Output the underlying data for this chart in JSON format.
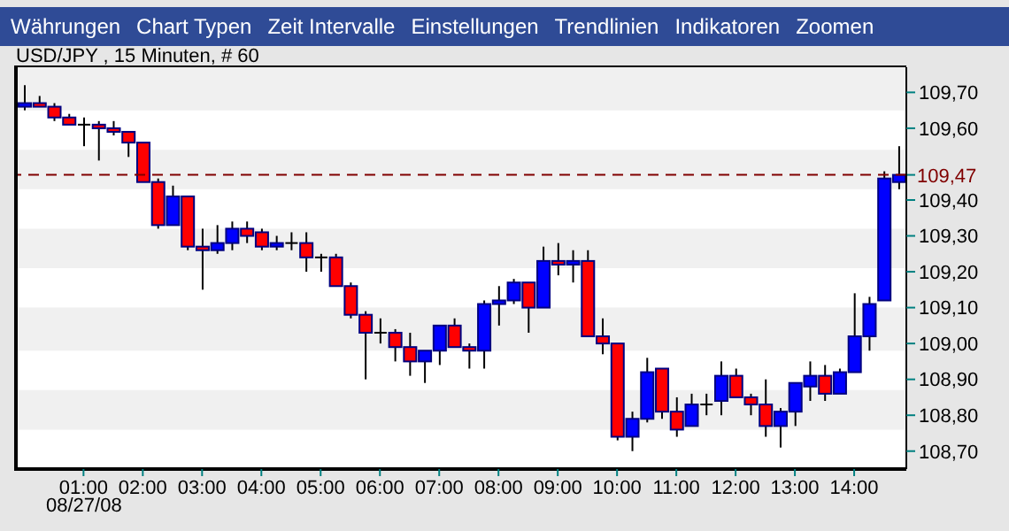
{
  "chart_data": {
    "type": "candlestick",
    "title": "USD/JPY , 15 Minuten, # 60",
    "annotations": [
      "Währungen",
      "Chart Typen",
      "Zeit Intervalle",
      "Einstellungen",
      "Trendlinien",
      "Indikatoren",
      "Zoomen",
      "08/27/08"
    ],
    "x": [
      0,
      0.25,
      0.5,
      0.75,
      1,
      1.25,
      1.5,
      1.75,
      2,
      2.25,
      2.5,
      2.75,
      3,
      3.25,
      3.5,
      3.75,
      4,
      4.25,
      4.5,
      4.75,
      5,
      5.25,
      5.5,
      5.75,
      6,
      6.25,
      6.5,
      6.75,
      7,
      7.25,
      7.5,
      7.75,
      8,
      8.25,
      8.5,
      8.75,
      9,
      9.25,
      9.5,
      9.75,
      10,
      10.25,
      10.5,
      10.75,
      11,
      11.25,
      11.5,
      11.75,
      12,
      12.25,
      12.5,
      12.75,
      13,
      13.25,
      13.5,
      13.75,
      14,
      14.25,
      14.5,
      14.75
    ],
    "ohlc": [
      [
        109.66,
        109.72,
        109.65,
        109.67
      ],
      [
        109.67,
        109.69,
        109.66,
        109.66
      ],
      [
        109.66,
        109.67,
        109.62,
        109.63
      ],
      [
        109.63,
        109.64,
        109.61,
        109.61
      ],
      [
        109.61,
        109.63,
        109.55,
        109.61
      ],
      [
        109.61,
        109.62,
        109.51,
        109.6
      ],
      [
        109.6,
        109.62,
        109.58,
        109.59
      ],
      [
        109.59,
        109.59,
        109.52,
        109.56
      ],
      [
        109.56,
        109.56,
        109.45,
        109.45
      ],
      [
        109.45,
        109.46,
        109.32,
        109.33
      ],
      [
        109.33,
        109.44,
        109.33,
        109.41
      ],
      [
        109.41,
        109.41,
        109.26,
        109.27
      ],
      [
        109.27,
        109.32,
        109.15,
        109.26
      ],
      [
        109.26,
        109.33,
        109.25,
        109.28
      ],
      [
        109.28,
        109.34,
        109.26,
        109.32
      ],
      [
        109.32,
        109.34,
        109.28,
        109.3
      ],
      [
        109.31,
        109.32,
        109.26,
        109.27
      ],
      [
        109.27,
        109.3,
        109.26,
        109.28
      ],
      [
        109.28,
        109.31,
        109.26,
        109.28
      ],
      [
        109.28,
        109.31,
        109.2,
        109.24
      ],
      [
        109.24,
        109.25,
        109.2,
        109.24
      ],
      [
        109.24,
        109.25,
        109.16,
        109.16
      ],
      [
        109.16,
        109.17,
        109.07,
        109.08
      ],
      [
        109.08,
        109.09,
        108.9,
        109.03
      ],
      [
        109.03,
        109.07,
        109.0,
        109.03
      ],
      [
        109.03,
        109.04,
        108.95,
        108.99
      ],
      [
        108.99,
        109.03,
        108.91,
        108.95
      ],
      [
        108.95,
        108.98,
        108.89,
        108.98
      ],
      [
        108.98,
        109.05,
        108.94,
        109.05
      ],
      [
        109.05,
        109.07,
        108.99,
        108.99
      ],
      [
        108.99,
        109.0,
        108.93,
        108.98
      ],
      [
        108.98,
        109.12,
        108.93,
        109.11
      ],
      [
        109.11,
        109.16,
        109.05,
        109.12
      ],
      [
        109.12,
        109.18,
        109.11,
        109.17
      ],
      [
        109.17,
        109.17,
        109.03,
        109.1
      ],
      [
        109.1,
        109.27,
        109.1,
        109.23
      ],
      [
        109.23,
        109.28,
        109.19,
        109.22
      ],
      [
        109.22,
        109.26,
        109.17,
        109.23
      ],
      [
        109.23,
        109.26,
        109.02,
        109.02
      ],
      [
        109.02,
        109.07,
        108.97,
        109.0
      ],
      [
        109.0,
        109.0,
        108.73,
        108.74
      ],
      [
        108.74,
        108.81,
        108.7,
        108.79
      ],
      [
        108.79,
        108.96,
        108.78,
        108.92
      ],
      [
        108.93,
        108.93,
        108.79,
        108.81
      ],
      [
        108.81,
        108.85,
        108.74,
        108.76
      ],
      [
        108.77,
        108.86,
        108.77,
        108.83
      ],
      [
        108.83,
        108.86,
        108.8,
        108.83
      ],
      [
        108.84,
        108.95,
        108.8,
        108.91
      ],
      [
        108.91,
        108.93,
        108.85,
        108.85
      ],
      [
        108.85,
        108.86,
        108.8,
        108.83
      ],
      [
        108.83,
        108.9,
        108.74,
        108.77
      ],
      [
        108.77,
        108.82,
        108.71,
        108.81
      ],
      [
        108.81,
        108.89,
        108.77,
        108.89
      ],
      [
        108.88,
        108.95,
        108.84,
        108.91
      ],
      [
        108.91,
        108.94,
        108.84,
        108.86
      ],
      [
        108.86,
        108.93,
        108.86,
        108.92
      ],
      [
        108.92,
        109.14,
        108.92,
        109.02
      ],
      [
        109.02,
        109.13,
        108.98,
        109.11
      ],
      [
        109.12,
        109.48,
        109.12,
        109.46
      ],
      [
        109.45,
        109.55,
        109.43,
        109.47
      ]
    ],
    "colors": [
      "#0000ff",
      "#ff0000",
      "#ff0000",
      "#ff0000",
      "#000000",
      "#ff0000",
      "#ff0000",
      "#ff0000",
      "#ff0000",
      "#ff0000",
      "#0000ff",
      "#ff0000",
      "#ff0000",
      "#0000ff",
      "#0000ff",
      "#ff0000",
      "#ff0000",
      "#0000ff",
      "#000000",
      "#ff0000",
      "#000000",
      "#ff0000",
      "#ff0000",
      "#ff0000",
      "#000000",
      "#ff0000",
      "#ff0000",
      "#0000ff",
      "#0000ff",
      "#ff0000",
      "#ff0000",
      "#0000ff",
      "#0000ff",
      "#0000ff",
      "#ff0000",
      "#0000ff",
      "#ff0000",
      "#0000ff",
      "#ff0000",
      "#ff0000",
      "#ff0000",
      "#0000ff",
      "#0000ff",
      "#ff0000",
      "#ff0000",
      "#0000ff",
      "#000000",
      "#0000ff",
      "#ff0000",
      "#ff0000",
      "#ff0000",
      "#0000ff",
      "#0000ff",
      "#0000ff",
      "#ff0000",
      "#0000ff",
      "#0000ff",
      "#0000ff",
      "#0000ff",
      "#0000ff"
    ],
    "xlim": [
      -0.17,
      14.88
    ],
    "xticks": [
      {
        "value": 1,
        "label": "01:00"
      },
      {
        "value": 2,
        "label": "02:00"
      },
      {
        "value": 3,
        "label": "03:00"
      },
      {
        "value": 4,
        "label": "04:00"
      },
      {
        "value": 5,
        "label": "05:00"
      },
      {
        "value": 6,
        "label": "06:00"
      },
      {
        "value": 7,
        "label": "07:00"
      },
      {
        "value": 8,
        "label": "08:00"
      },
      {
        "value": 9,
        "label": "09:00"
      },
      {
        "value": 10,
        "label": "10:00"
      },
      {
        "value": 11,
        "label": "11:00"
      },
      {
        "value": 12,
        "label": "12:00"
      },
      {
        "value": 13,
        "label": "13:00"
      },
      {
        "value": 14,
        "label": "14:00"
      }
    ],
    "ylim": [
      108.65,
      109.77
    ],
    "yticks": [
      {
        "value": 108.7,
        "label": "108,70"
      },
      {
        "value": 108.8,
        "label": "108,80"
      },
      {
        "value": 108.9,
        "label": "108,90"
      },
      {
        "value": 109.0,
        "label": "109,00"
      },
      {
        "value": 109.1,
        "label": "109,10"
      },
      {
        "value": 109.2,
        "label": "109,20"
      },
      {
        "value": 109.3,
        "label": "109,30"
      },
      {
        "value": 109.4,
        "label": "109,40"
      },
      {
        "value": 109.6,
        "label": "109,60"
      },
      {
        "value": 109.7,
        "label": "109,70"
      }
    ],
    "ref_lines": [
      {
        "axis": "y",
        "value": 109.47,
        "label": "109,47",
        "color": "#800000",
        "line_style": "dashed"
      }
    ],
    "bands": [
      {
        "axis": "y",
        "from": 109.65,
        "to": 109.77,
        "color": "#f0f0f0"
      },
      {
        "axis": "y",
        "from": 109.43,
        "to": 109.54,
        "color": "#f0f0f0"
      },
      {
        "axis": "y",
        "from": 109.21,
        "to": 109.32,
        "color": "#f0f0f0"
      },
      {
        "axis": "y",
        "from": 108.98,
        "to": 109.1,
        "color": "#f0f0f0"
      },
      {
        "axis": "y",
        "from": 108.76,
        "to": 108.87,
        "color": "#f0f0f0"
      }
    ]
  }
}
